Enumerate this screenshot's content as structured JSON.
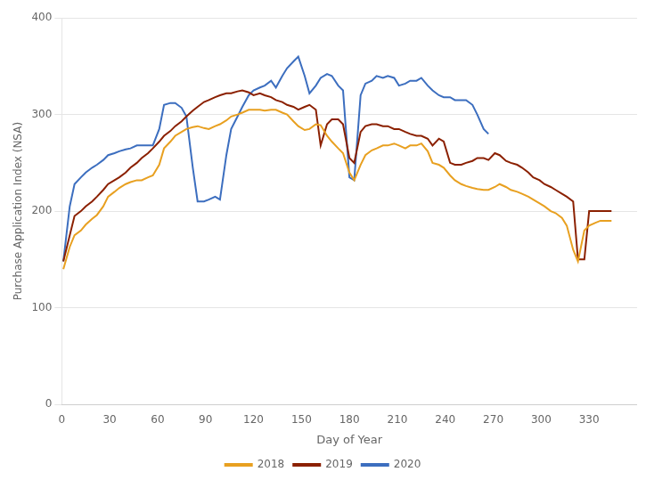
{
  "chart_data": {
    "type": "line",
    "xlabel": "Day of Year",
    "ylabel": "Purchase Application Index (NSA)",
    "xlim": [
      0,
      360
    ],
    "ylim": [
      0,
      400
    ],
    "xticks": [
      0,
      30,
      60,
      90,
      120,
      150,
      180,
      210,
      240,
      270,
      300,
      330
    ],
    "yticks": [
      0,
      100,
      200,
      300,
      400
    ],
    "grid": "y",
    "legend": "bottom",
    "series": [
      {
        "name": "2018",
        "color": "#E8A020",
        "x": [
          1,
          5,
          8,
          12,
          15,
          19,
          22,
          26,
          29,
          33,
          36,
          40,
          43,
          47,
          50,
          54,
          57,
          61,
          64,
          68,
          71,
          75,
          78,
          82,
          85,
          89,
          92,
          96,
          99,
          103,
          106,
          110,
          113,
          117,
          120,
          124,
          127,
          131,
          134,
          138,
          141,
          145,
          148,
          152,
          155,
          159,
          162,
          166,
          169,
          173,
          176,
          180,
          183,
          187,
          190,
          194,
          197,
          201,
          204,
          208,
          211,
          215,
          218,
          222,
          225,
          229,
          232,
          236,
          239,
          243,
          246,
          250,
          253,
          257,
          260,
          264,
          267,
          271,
          274,
          278,
          281,
          285,
          288,
          292,
          295,
          299,
          302,
          306,
          309,
          313,
          316,
          320,
          323,
          327,
          330,
          334,
          337,
          341,
          344
        ],
        "values": [
          140,
          163,
          175,
          180,
          186,
          192,
          196,
          205,
          215,
          220,
          224,
          228,
          230,
          232,
          232,
          235,
          237,
          248,
          265,
          272,
          278,
          282,
          285,
          287,
          288,
          286,
          285,
          288,
          290,
          294,
          298,
          300,
          302,
          305,
          305,
          305,
          304,
          305,
          305,
          302,
          300,
          293,
          288,
          284,
          285,
          290,
          289,
          278,
          272,
          265,
          260,
          240,
          232,
          248,
          258,
          263,
          265,
          268,
          268,
          270,
          268,
          265,
          268,
          268,
          270,
          262,
          250,
          248,
          245,
          237,
          232,
          228,
          226,
          224,
          223,
          222,
          222,
          225,
          228,
          225,
          222,
          220,
          218,
          215,
          212,
          208,
          205,
          200,
          198,
          193,
          185,
          160,
          148,
          180,
          185,
          188,
          190,
          190,
          190
        ]
      },
      {
        "name": "2019",
        "color": "#8B2000",
        "x": [
          1,
          5,
          8,
          12,
          15,
          19,
          22,
          26,
          29,
          33,
          36,
          40,
          43,
          47,
          50,
          54,
          57,
          61,
          64,
          68,
          71,
          75,
          78,
          82,
          85,
          89,
          92,
          96,
          99,
          103,
          106,
          110,
          113,
          117,
          120,
          124,
          127,
          131,
          134,
          138,
          141,
          145,
          148,
          152,
          155,
          159,
          162,
          166,
          169,
          173,
          176,
          180,
          183,
          187,
          190,
          194,
          197,
          201,
          204,
          208,
          211,
          215,
          218,
          222,
          225,
          229,
          232,
          236,
          239,
          243,
          246,
          250,
          253,
          257,
          260,
          264,
          267,
          271,
          274,
          278,
          281,
          285,
          288,
          292,
          295,
          299,
          302,
          306,
          309,
          313,
          316,
          320,
          323,
          327,
          330,
          334,
          337,
          341,
          344
        ],
        "values": [
          148,
          175,
          195,
          200,
          205,
          210,
          215,
          222,
          228,
          232,
          235,
          240,
          245,
          250,
          255,
          260,
          265,
          272,
          278,
          283,
          288,
          293,
          298,
          304,
          308,
          313,
          315,
          318,
          320,
          322,
          322,
          324,
          325,
          323,
          320,
          322,
          320,
          318,
          315,
          313,
          310,
          308,
          305,
          308,
          310,
          305,
          268,
          290,
          295,
          295,
          290,
          255,
          250,
          282,
          288,
          290,
          290,
          288,
          288,
          285,
          285,
          282,
          280,
          278,
          278,
          275,
          268,
          275,
          272,
          250,
          248,
          248,
          250,
          252,
          255,
          255,
          253,
          260,
          258,
          252,
          250,
          248,
          245,
          240,
          235,
          232,
          228,
          225,
          222,
          218,
          215,
          210,
          150,
          150,
          200,
          200,
          200,
          200,
          200
        ]
      },
      {
        "name": "2020",
        "color": "#3C6EBF",
        "x": [
          1,
          5,
          8,
          12,
          15,
          19,
          22,
          26,
          29,
          33,
          36,
          40,
          43,
          47,
          50,
          54,
          57,
          61,
          64,
          68,
          71,
          75,
          78,
          82,
          85,
          89,
          92,
          96,
          99,
          103,
          106,
          110,
          113,
          117,
          120,
          124,
          127,
          131,
          134,
          138,
          141,
          145,
          148,
          152,
          155,
          159,
          162,
          166,
          169,
          173,
          176,
          180,
          183,
          187,
          190,
          194,
          197,
          201,
          204,
          208,
          211,
          215,
          218,
          222,
          225,
          229,
          232,
          236,
          239,
          243,
          246,
          250,
          253,
          257,
          260,
          264,
          267
        ],
        "values": [
          148,
          205,
          228,
          235,
          240,
          245,
          248,
          253,
          258,
          260,
          262,
          264,
          265,
          268,
          268,
          268,
          268,
          285,
          310,
          312,
          312,
          307,
          298,
          245,
          210,
          210,
          212,
          215,
          212,
          258,
          285,
          298,
          308,
          320,
          325,
          328,
          330,
          335,
          328,
          340,
          348,
          355,
          360,
          340,
          322,
          330,
          338,
          342,
          340,
          330,
          325,
          235,
          232,
          320,
          332,
          335,
          340,
          338,
          340,
          338,
          330,
          332,
          335,
          335,
          338,
          330,
          325,
          320,
          318,
          318,
          315,
          315,
          315,
          310,
          300,
          285,
          280
        ]
      }
    ]
  }
}
